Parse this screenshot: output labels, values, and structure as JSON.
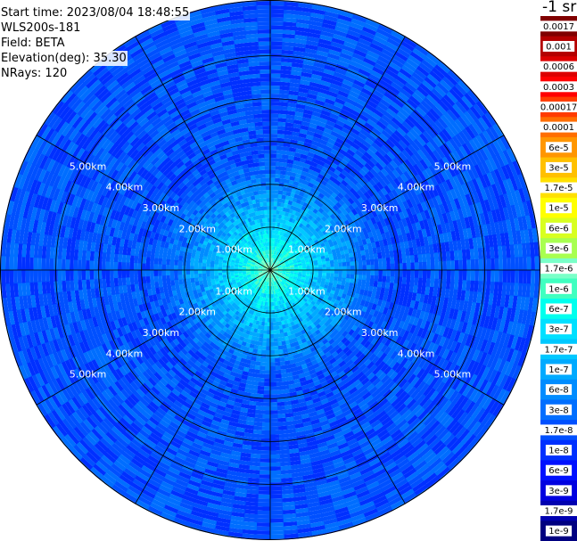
{
  "info": {
    "start_time": "Start time: 2023/08/04 18:48:55",
    "device": "WLS200s-181",
    "field": "Field: BETA",
    "elevation": "Elevation(deg): 35.30",
    "nrays": "NRays: 120"
  },
  "chart_data": {
    "type": "heatmap",
    "projection": "polar-ppi",
    "field": "BETA",
    "elevation_deg": 35.3,
    "nrays": 120,
    "range_rings_km": [
      1,
      2,
      3,
      4,
      5
    ],
    "range_labels": [
      "1.00km",
      "2.00km",
      "3.00km",
      "4.00km",
      "5.00km"
    ],
    "max_range_km": 6.3,
    "azimuth_spokes_deg": [
      0,
      30,
      60,
      90,
      120,
      150,
      180,
      210,
      240,
      270,
      300,
      330
    ],
    "center_value": "1.7e-6",
    "far_value": "1.7e-8",
    "colorbar": {
      "unit_label": "-1 sr",
      "labels": [
        "0.0017",
        "0.001",
        "0.0006",
        "0.0003",
        "0.00017",
        "0.0001",
        "6e-5",
        "3e-5",
        "1.7e-5",
        "1e-5",
        "6e-6",
        "3e-6",
        "1.7e-6",
        "1e-6",
        "6e-7",
        "3e-7",
        "1.7e-7",
        "1e-7",
        "6e-8",
        "3e-8",
        "1.7e-8",
        "1e-8",
        "6e-9",
        "3e-9",
        "1.7e-9",
        "1e-9"
      ],
      "colors": [
        "#800000",
        "#b40000",
        "#dc0000",
        "#ff0000",
        "#ff3c00",
        "#ff6e00",
        "#ff9600",
        "#ffc000",
        "#ffe000",
        "#ffff00",
        "#d8ff20",
        "#a8ff50",
        "#7affc8",
        "#40ffc0",
        "#00ffee",
        "#00e0ff",
        "#00c8ff",
        "#00aaff",
        "#008cff",
        "#006eff",
        "#0050ff",
        "#0030ff",
        "#0010ff",
        "#0000e0",
        "#0000b0",
        "#000080"
      ]
    }
  }
}
